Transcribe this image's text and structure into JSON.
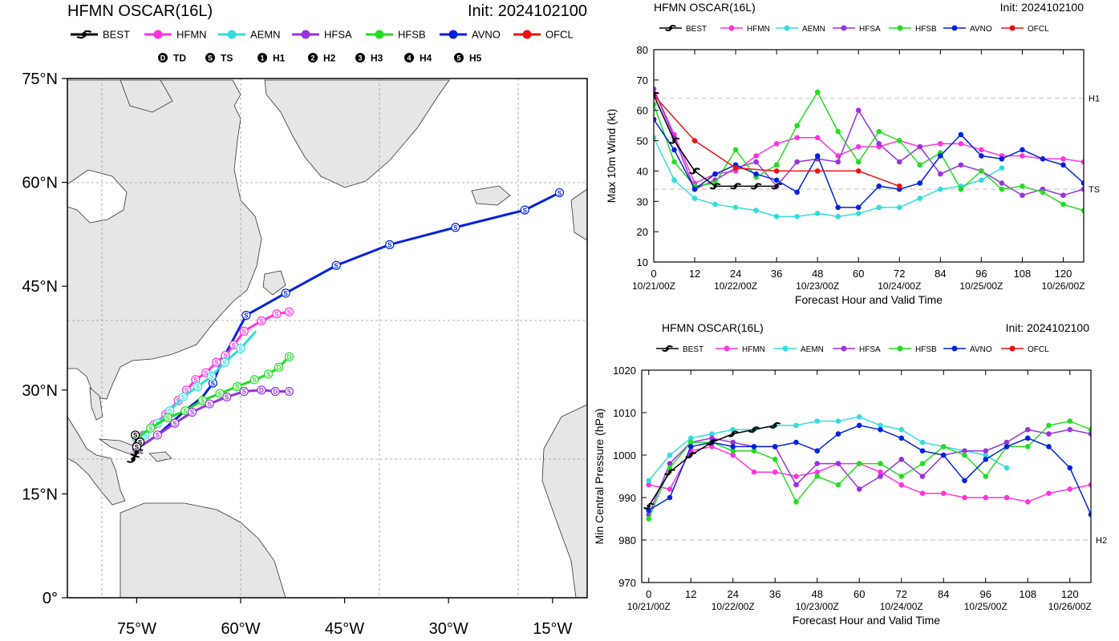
{
  "header": {
    "title": "HFMN OSCAR(16L)",
    "init": "Init: 2024102100"
  },
  "legend": {
    "models": [
      {
        "name": "BEST",
        "color": "#000000"
      },
      {
        "name": "HFMN",
        "color": "#ff33dd"
      },
      {
        "name": "AEMN",
        "color": "#33dddd"
      },
      {
        "name": "HFSA",
        "color": "#9933dd"
      },
      {
        "name": "HFSB",
        "color": "#22dd22"
      },
      {
        "name": "AVNO",
        "color": "#0022dd"
      },
      {
        "name": "OFCL",
        "color": "#ee1111"
      }
    ],
    "intensity": [
      {
        "glyph": "D",
        "label": "TD"
      },
      {
        "glyph": "S",
        "label": "TS"
      },
      {
        "glyph": "1",
        "label": "H1"
      },
      {
        "glyph": "2",
        "label": "H2"
      },
      {
        "glyph": "3",
        "label": "H3"
      },
      {
        "glyph": "4",
        "label": "H4"
      },
      {
        "glyph": "5",
        "label": "H5"
      }
    ]
  },
  "chart_data": [
    {
      "type": "scatter",
      "kind": "track_map",
      "title": "HFMN OSCAR(16L)",
      "subtitle": "Init: 2024102100",
      "xlim": [
        -85,
        -10
      ],
      "ylim": [
        0,
        75
      ],
      "xticks": [
        "75°W",
        "60°W",
        "45°W",
        "30°W",
        "15°W"
      ],
      "xtick_values": [
        -75,
        -60,
        -45,
        -30,
        -15
      ],
      "yticks": [
        "0°",
        "15°N",
        "30°N",
        "45°N",
        "60°N",
        "75°N"
      ],
      "ytick_values": [
        0,
        15,
        30,
        45,
        60,
        75
      ],
      "grid": true,
      "series": [
        {
          "name": "AVNO",
          "color": "#0022dd",
          "lon": [
            -75.0,
            -73.5,
            -72.0,
            -70.3,
            -67.8,
            -65.5,
            -64.0,
            -62.8,
            -61.5,
            -59.2,
            -53.5,
            -46.2,
            -38.5,
            -29.0,
            -19.0,
            -14.0
          ],
          "lat": [
            21.5,
            22.5,
            23.5,
            25.0,
            27.2,
            29.0,
            31.0,
            34.0,
            36.5,
            40.8,
            44.0,
            48.0,
            51.0,
            53.5,
            56.0,
            58.5
          ],
          "symbols": [
            "",
            "",
            "",
            "",
            "",
            "",
            "S",
            "",
            "",
            "S",
            "S",
            "S",
            "S",
            "S",
            "S",
            "S"
          ]
        },
        {
          "name": "HFMN",
          "color": "#ff33dd",
          "lon": [
            -75.0,
            -74.0,
            -72.5,
            -70.8,
            -69.0,
            -67.8,
            -66.5,
            -65.0,
            -63.5,
            -62.2,
            -61.0,
            -59.5,
            -57.0,
            -54.8,
            -53.0
          ],
          "lat": [
            22.0,
            23.5,
            25.0,
            26.5,
            28.5,
            30.0,
            31.5,
            32.5,
            34.0,
            35.0,
            36.5,
            38.5,
            40.0,
            41.0,
            41.3
          ],
          "symbols": [
            "S",
            "S",
            "S",
            "S",
            "S",
            "S",
            "S",
            "S",
            "S",
            "S",
            "S",
            "S",
            "S",
            "S",
            "S"
          ]
        },
        {
          "name": "AEMN",
          "color": "#33dddd",
          "lon": [
            -75.0,
            -73.8,
            -72.0,
            -70.2,
            -68.3,
            -66.2,
            -64.2,
            -62.3,
            -60.0,
            -57.8
          ],
          "lat": [
            21.8,
            23.5,
            25.2,
            27.0,
            29.0,
            30.5,
            32.0,
            34.0,
            36.0,
            38.5
          ],
          "symbols": [
            "",
            "S",
            "S",
            "S",
            "S",
            "S",
            "S",
            "S",
            "S",
            ""
          ]
        },
        {
          "name": "HFSB",
          "color": "#22dd22",
          "lon": [
            -75.0,
            -73.0,
            -70.5,
            -68.0,
            -65.5,
            -63.0,
            -60.5,
            -58.0,
            -56.0,
            -54.5,
            -53.0
          ],
          "lat": [
            23.0,
            24.5,
            26.0,
            27.0,
            28.5,
            29.5,
            30.5,
            31.5,
            32.3,
            33.3,
            34.8
          ],
          "symbols": [
            "S",
            "S",
            "S",
            "S",
            "S",
            "S",
            "S",
            "S",
            "S",
            "D",
            "D"
          ]
        },
        {
          "name": "HFSA",
          "color": "#9933dd",
          "lon": [
            -75.0,
            -72.0,
            -69.5,
            -67.0,
            -64.5,
            -62.0,
            -59.5,
            -57.0,
            -55.0,
            -53.0
          ],
          "lat": [
            21.5,
            23.5,
            25.2,
            26.8,
            28.0,
            29.0,
            29.8,
            30.0,
            29.8,
            29.8
          ],
          "symbols": [
            "S",
            "S",
            "S",
            "S",
            "S",
            "S",
            "S",
            "D",
            "D",
            "S"
          ]
        },
        {
          "name": "BEST",
          "color": "#000000",
          "lon": [
            -75.5,
            -75.0,
            -74.5,
            -75.2,
            -75.0
          ],
          "lat": [
            20.0,
            21.0,
            22.5,
            23.5,
            21.8
          ],
          "symbols": [
            "h",
            "h",
            "S",
            "S",
            "S"
          ]
        }
      ]
    },
    {
      "type": "line",
      "title": "HFMN OSCAR(16L)",
      "subtitle": "Init: 2024102100",
      "xlabel": "Forecast Hour and Valid Time",
      "ylabel": "Max 10m Wind (kt)",
      "xlim": [
        0,
        126
      ],
      "ylim": [
        10,
        80
      ],
      "xticks": [
        0,
        12,
        24,
        36,
        48,
        60,
        72,
        84,
        96,
        108,
        120
      ],
      "date_ticks": [
        {
          "hour": 0,
          "label": "10/21/00Z"
        },
        {
          "hour": 24,
          "label": "10/22/00Z"
        },
        {
          "hour": 48,
          "label": "10/23/00Z"
        },
        {
          "hour": 72,
          "label": "10/24/00Z"
        },
        {
          "hour": 96,
          "label": "10/25/00Z"
        },
        {
          "hour": 120,
          "label": "10/26/00Z"
        }
      ],
      "yticks": [
        10,
        20,
        30,
        40,
        50,
        60,
        70,
        80
      ],
      "ref_lines": [
        {
          "value": 64,
          "label": "H1"
        },
        {
          "value": 34,
          "label": "TS"
        }
      ],
      "series": [
        {
          "name": "HFMN",
          "color": "#ff33dd",
          "x": [
            0,
            6,
            12,
            18,
            24,
            30,
            36,
            42,
            48,
            54,
            60,
            66,
            72,
            78,
            84,
            90,
            96,
            102,
            108,
            114,
            120,
            126
          ],
          "y": [
            67,
            52,
            36,
            39,
            40,
            45,
            49,
            51,
            51,
            45,
            48,
            48,
            50,
            48,
            49,
            49,
            47,
            45,
            45,
            44,
            44,
            43
          ]
        },
        {
          "name": "AEMN",
          "color": "#33dddd",
          "x": [
            0,
            6,
            12,
            18,
            24,
            30,
            36,
            42,
            48,
            54,
            60,
            66,
            72,
            78,
            84,
            90,
            96,
            102
          ],
          "y": [
            51,
            37,
            31,
            29,
            28,
            27,
            25,
            25,
            26,
            25,
            26,
            28,
            28,
            31,
            34,
            35,
            37,
            41
          ]
        },
        {
          "name": "HFSA",
          "color": "#9933dd",
          "x": [
            0,
            6,
            12,
            18,
            24,
            30,
            36,
            42,
            48,
            54,
            60,
            66,
            72,
            78,
            84,
            90,
            96,
            102,
            108,
            114,
            120,
            126
          ],
          "y": [
            67,
            51,
            34,
            37,
            41,
            43,
            35,
            43,
            44,
            43,
            60,
            49,
            43,
            48,
            39,
            42,
            40,
            36,
            32,
            34,
            32,
            34
          ]
        },
        {
          "name": "HFSB",
          "color": "#22dd22",
          "x": [
            0,
            6,
            12,
            18,
            24,
            30,
            36,
            42,
            48,
            54,
            60,
            66,
            72,
            78,
            84,
            90,
            96,
            102,
            108,
            114,
            120,
            126
          ],
          "y": [
            62,
            43,
            35,
            36,
            47,
            38,
            42,
            55,
            66,
            53,
            43,
            53,
            50,
            42,
            46,
            34,
            40,
            34,
            35,
            33,
            29,
            27
          ]
        },
        {
          "name": "AVNO",
          "color": "#0022dd",
          "x": [
            0,
            6,
            12,
            18,
            24,
            30,
            36,
            42,
            48,
            54,
            60,
            66,
            72,
            78,
            84,
            90,
            96,
            102,
            108,
            114,
            120,
            126
          ],
          "y": [
            57,
            47,
            34,
            39,
            42,
            39,
            37,
            33,
            45,
            28,
            28,
            35,
            34,
            36,
            45,
            52,
            45,
            44,
            47,
            44,
            42,
            36
          ]
        },
        {
          "name": "OFCL",
          "color": "#ee1111",
          "x": [
            0,
            12,
            24,
            36,
            48,
            60,
            72
          ],
          "y": [
            65,
            50,
            41,
            40,
            40,
            40,
            35
          ]
        },
        {
          "name": "BEST",
          "color": "#000000",
          "x": [
            0,
            6,
            12,
            18,
            24,
            30,
            36
          ],
          "y": [
            65,
            50,
            40,
            35,
            35,
            35,
            35
          ]
        }
      ]
    },
    {
      "type": "line",
      "title": "HFMN OSCAR(16L)",
      "subtitle": "Init: 2024102100",
      "xlabel": "Forecast Hour and Valid Time",
      "ylabel": "Min Central Pressure (hPa)",
      "xlim": [
        -2,
        126
      ],
      "ylim": [
        970,
        1020
      ],
      "xticks": [
        0,
        12,
        24,
        36,
        48,
        60,
        72,
        84,
        96,
        108,
        120
      ],
      "date_ticks": [
        {
          "hour": 0,
          "label": "10/21/00Z"
        },
        {
          "hour": 24,
          "label": "10/22/00Z"
        },
        {
          "hour": 48,
          "label": "10/23/00Z"
        },
        {
          "hour": 72,
          "label": "10/24/00Z"
        },
        {
          "hour": 96,
          "label": "10/25/00Z"
        },
        {
          "hour": 120,
          "label": "10/26/00Z"
        }
      ],
      "yticks": [
        970,
        980,
        990,
        1000,
        1010,
        1020
      ],
      "ref_lines": [
        {
          "value": 980,
          "label": "H2"
        }
      ],
      "series": [
        {
          "name": "HFMN",
          "color": "#ff33dd",
          "x": [
            0,
            6,
            12,
            18,
            24,
            30,
            36,
            42,
            48,
            54,
            60,
            66,
            72,
            78,
            84,
            90,
            96,
            102,
            108,
            114,
            120,
            126
          ],
          "y": [
            993,
            992,
            1001,
            1002,
            1000,
            996,
            996,
            995,
            996,
            998,
            998,
            996,
            993,
            991,
            991,
            990,
            990,
            990,
            989,
            991,
            992,
            993
          ]
        },
        {
          "name": "AEMN",
          "color": "#33dddd",
          "x": [
            0,
            6,
            12,
            18,
            24,
            30,
            36,
            42,
            48,
            54,
            60,
            66,
            72,
            78,
            84,
            90,
            96,
            102
          ],
          "y": [
            994,
            1000,
            1004,
            1005,
            1006,
            1006,
            1007,
            1007,
            1008,
            1008,
            1009,
            1007,
            1006,
            1003,
            1002,
            1001,
            1000,
            997
          ]
        },
        {
          "name": "HFSA",
          "color": "#9933dd",
          "x": [
            0,
            6,
            12,
            18,
            24,
            30,
            36,
            42,
            48,
            54,
            60,
            66,
            72,
            78,
            84,
            90,
            96,
            102,
            108,
            114,
            120,
            126
          ],
          "y": [
            986,
            998,
            1003,
            1004,
            1003,
            1002,
            1002,
            993,
            998,
            998,
            992,
            995,
            999,
            995,
            1000,
            1001,
            1001,
            1003,
            1006,
            1005,
            1006,
            1005
          ]
        },
        {
          "name": "HFSB",
          "color": "#22dd22",
          "x": [
            0,
            6,
            12,
            18,
            24,
            30,
            36,
            42,
            48,
            54,
            60,
            66,
            72,
            78,
            84,
            90,
            96,
            102,
            108,
            114,
            120,
            126
          ],
          "y": [
            985,
            997,
            1003,
            1003,
            1001,
            1001,
            999,
            989,
            995,
            993,
            998,
            998,
            995,
            998,
            1002,
            1000,
            995,
            1002,
            1002,
            1007,
            1008,
            1006
          ]
        },
        {
          "name": "AVNO",
          "color": "#0022dd",
          "x": [
            0,
            6,
            12,
            18,
            24,
            30,
            36,
            42,
            48,
            54,
            60,
            66,
            72,
            78,
            84,
            90,
            96,
            102,
            108,
            114,
            120,
            126
          ],
          "y": [
            987,
            990,
            1002,
            1003,
            1002,
            1002,
            1002,
            1003,
            1001,
            1005,
            1007,
            1006,
            1004,
            1001,
            1000,
            994,
            999,
            1002,
            1004,
            1002,
            997,
            986
          ]
        },
        {
          "name": "BEST",
          "color": "#000000",
          "x": [
            0,
            6,
            12,
            18,
            24,
            30,
            36
          ],
          "y": [
            988,
            996,
            1000,
            1003,
            1005,
            1006,
            1007
          ]
        }
      ]
    }
  ]
}
